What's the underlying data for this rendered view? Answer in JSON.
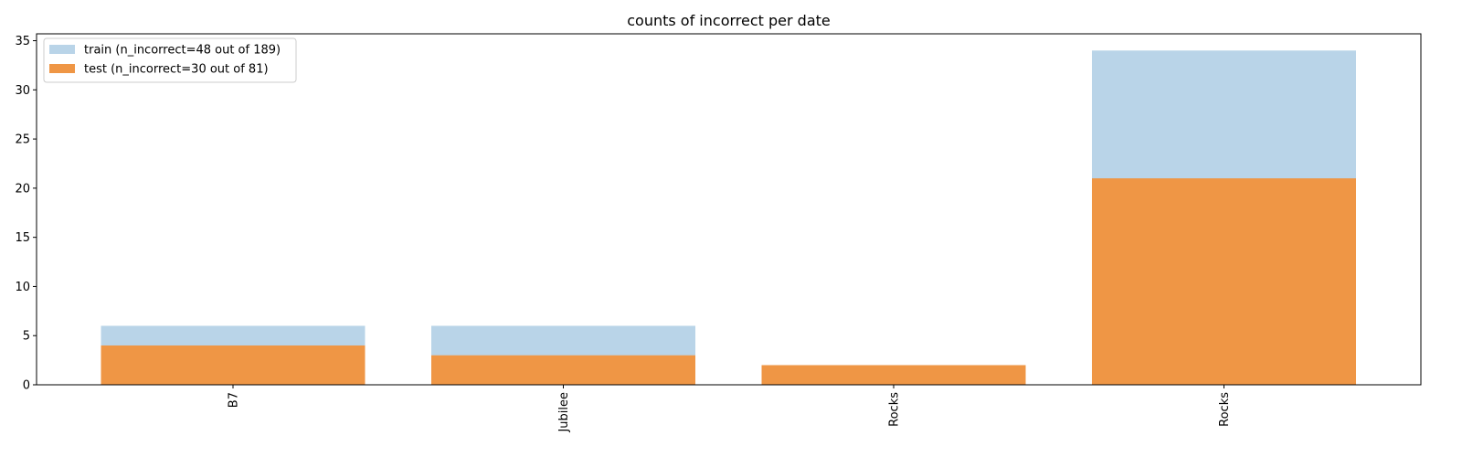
{
  "chart_data": {
    "type": "bar",
    "title": "counts of incorrect per date",
    "xlabel": "",
    "ylabel": "",
    "categories": [
      "B7",
      "Jubilee",
      "Rocks",
      "Rocks"
    ],
    "series": [
      {
        "name": "train (n_incorrect=48 out of 189)",
        "values": [
          6,
          6,
          2,
          34
        ],
        "color": "#b9d4e8"
      },
      {
        "name": "test (n_incorrect=30 out of 81)",
        "values": [
          4,
          3,
          2,
          21
        ],
        "color": "#ef9645"
      }
    ],
    "ylim": [
      0,
      35.7
    ],
    "yticks": [
      0,
      5,
      10,
      15,
      20,
      25,
      30,
      35
    ],
    "grid": false,
    "legend_position": "top-left",
    "x_tick_rotation": "vertical"
  }
}
